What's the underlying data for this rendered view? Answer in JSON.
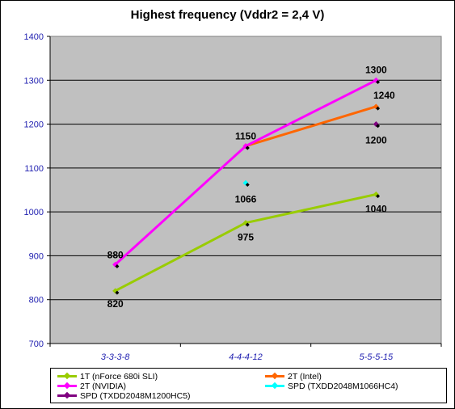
{
  "chart_data": {
    "type": "line",
    "title": "Highest frequency (Vddr2 = 2,4 V)",
    "categories": [
      "3-3-3-8",
      "4-4-4-12",
      "5-5-5-15"
    ],
    "ylim": [
      700,
      1400
    ],
    "yticks": [
      "1400",
      "1300",
      "1200",
      "1100",
      "1000",
      "900",
      "800",
      "700"
    ],
    "grid": true,
    "legend_position": "bottom",
    "series": [
      {
        "name": "1T (nForce 680i SLI)",
        "color": "#99cc00",
        "values": [
          820,
          975,
          1040
        ],
        "labels": [
          "820",
          "975",
          "1040"
        ]
      },
      {
        "name": "2T (Intel)",
        "color": "#ff6600",
        "values": [
          null,
          1150,
          1240
        ],
        "labels": [
          "",
          "",
          "1240"
        ]
      },
      {
        "name": "2T (NVIDIA)",
        "color": "#ff00ff",
        "values": [
          880,
          1150,
          1300
        ],
        "labels": [
          "880",
          "1150",
          "1300"
        ]
      },
      {
        "name": "SPD (TXDD2048M1066HC4)",
        "color": "#00ffff",
        "values": [
          null,
          1066,
          null
        ],
        "labels": [
          "",
          "1066",
          ""
        ]
      },
      {
        "name": "SPD (TXDD2048M1200HC5)",
        "color": "#800080",
        "values": [
          null,
          null,
          1200
        ],
        "labels": [
          "",
          "",
          "1200"
        ]
      }
    ]
  }
}
